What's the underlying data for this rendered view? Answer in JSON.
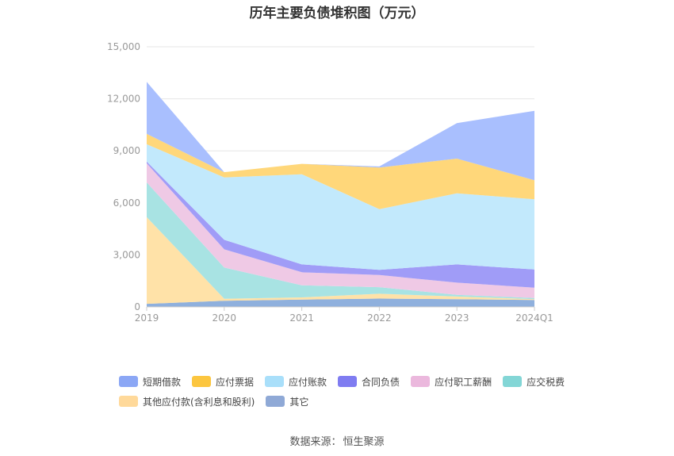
{
  "title": "历年主要负债堆积图（万元）",
  "source": {
    "label": "数据来源：",
    "value": "恒生聚源"
  },
  "chart_data": {
    "type": "area",
    "stacked": true,
    "categories": [
      "2019",
      "2020",
      "2021",
      "2022",
      "2023",
      "2024Q1"
    ],
    "ylim": [
      0,
      15000
    ],
    "yticks": [
      0,
      3000,
      6000,
      9000,
      12000,
      15000
    ],
    "ytick_labels": [
      "0",
      "3,000",
      "6,000",
      "9,000",
      "12,000",
      "15,000"
    ],
    "grid": true,
    "legend_position": "bottom",
    "series": [
      {
        "name": "其它",
        "color": "#8fb0dd",
        "values": [
          180,
          350,
          420,
          480,
          450,
          400
        ]
      },
      {
        "name": "其他应付款(含利息和股利)",
        "color": "#ffe2a8",
        "values": [
          5000,
          120,
          130,
          280,
          150,
          50
        ]
      },
      {
        "name": "应交税费",
        "color": "#a8e3e3",
        "values": [
          2000,
          1800,
          700,
          380,
          100,
          60
        ]
      },
      {
        "name": "应付职工薪酬",
        "color": "#efc9e5",
        "values": [
          1100,
          1050,
          750,
          700,
          700,
          600
        ]
      },
      {
        "name": "合同负债",
        "color": "#a09cf7",
        "values": [
          100,
          550,
          450,
          300,
          1050,
          1050
        ]
      },
      {
        "name": "应付账款",
        "color": "#c2e9fc",
        "values": [
          1000,
          3600,
          5200,
          3500,
          4100,
          4050
        ]
      },
      {
        "name": "应付票据",
        "color": "#ffd77a",
        "values": [
          600,
          300,
          600,
          2400,
          2000,
          1100
        ]
      },
      {
        "name": "短期借款",
        "color": "#a9bffe",
        "values": [
          3000,
          0,
          0,
          60,
          2050,
          4000
        ]
      }
    ]
  },
  "legend": {
    "rows": [
      [
        {
          "name": "短期借款",
          "color": "#8ba7f5"
        },
        {
          "name": "应付票据",
          "color": "#fcc63f"
        },
        {
          "name": "应付账款",
          "color": "#a9dffa"
        },
        {
          "name": "合同负债",
          "color": "#7f7cf1"
        },
        {
          "name": "应付职工薪酬",
          "color": "#ebb8dd"
        },
        {
          "name": "应交税费",
          "color": "#83d6d6"
        }
      ],
      [
        {
          "name": "其他应付款(含利息和股利)",
          "color": "#ffd99a"
        },
        {
          "name": "其它",
          "color": "#8fa9d6"
        }
      ]
    ]
  }
}
